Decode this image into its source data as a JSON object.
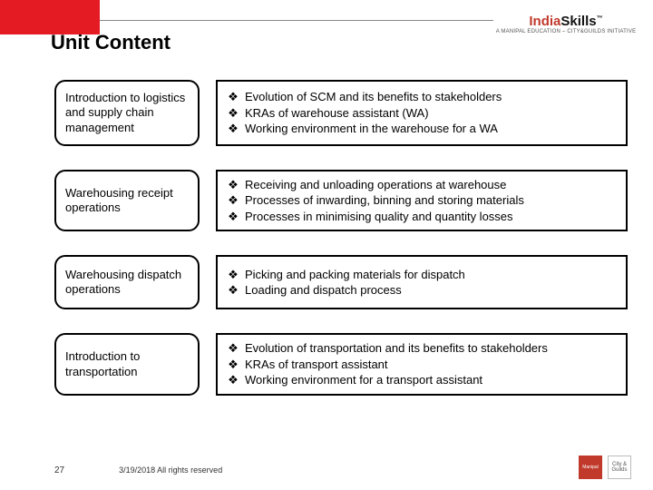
{
  "colors": {
    "accent_red": "#e41b23",
    "logo_red": "#c0392b",
    "border_black": "#000000",
    "line_gray": "#888888",
    "text_black": "#000000",
    "footer_gray": "#333333",
    "background": "#ffffff"
  },
  "typography": {
    "title_fontsize": 22,
    "body_fontsize": 13,
    "footer_fontsize": 9,
    "pagenum_fontsize": 10,
    "font_family": "Arial"
  },
  "layout": {
    "slide_width": 720,
    "slide_height": 540,
    "topic_box_width": 160,
    "topic_box_radius": 12,
    "border_width": 2,
    "row_gap": 18,
    "row_margin_bottom": 26
  },
  "logo": {
    "brand_prefix": "India",
    "brand_suffix": "Skills",
    "tagline": "A MANIPAL EDUCATION – CITY&GUILDS INITIATIVE",
    "tm": "™"
  },
  "title": "Unit Content",
  "bullet_glyph": "❖",
  "rows": [
    {
      "topic": "Introduction to logistics and supply chain management",
      "items": [
        "Evolution of SCM and its benefits to stakeholders",
        "KRAs of warehouse assistant (WA)",
        "Working environment in the warehouse for a WA"
      ]
    },
    {
      "topic": "Warehousing receipt operations",
      "items": [
        "Receiving and unloading operations at warehouse",
        "Processes of inwarding, binning and storing materials",
        "Processes in minimising quality and quantity losses"
      ]
    },
    {
      "topic": "Warehousing dispatch operations",
      "items": [
        "Picking and packing materials for dispatch",
        "Loading and dispatch process"
      ]
    },
    {
      "topic": "Introduction to transportation",
      "items": [
        "Evolution of transportation and its benefits to stakeholders",
        "KRAs of transport assistant",
        "Working environment for a transport assistant"
      ]
    }
  ],
  "footer": {
    "page_number": "27",
    "copyright": "3/19/2018  All rights reserved",
    "logo1_label": "Manipal",
    "logo2_label": "City & Guilds"
  }
}
